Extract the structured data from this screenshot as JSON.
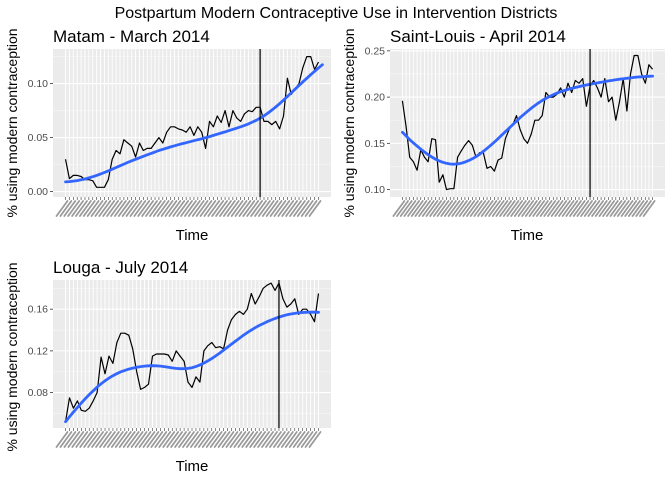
{
  "figure": {
    "title": "Postpartum Modern Contraceptive Use in Intervention Districts"
  },
  "style": {
    "panel_bg": "#ebebeb",
    "grid_major": "#ffffff",
    "raw_line": "#000000",
    "smooth_line": "#3366ff",
    "vline": "#000000"
  },
  "chart_data": [
    {
      "type": "line",
      "title": "Matam - March 2014",
      "xlabel": "Time",
      "ylabel": "% using modern contraception",
      "ylim": [
        -0.005,
        0.132
      ],
      "yticks": [
        0.0,
        0.05,
        0.1
      ],
      "ytick_labels": [
        "0.00",
        "0.05",
        "0.10"
      ],
      "intervention_index": 50,
      "series": [
        {
          "values": [
            0.03,
            0.012,
            0.015,
            0.015,
            0.014,
            0.011,
            0.011,
            0.01,
            0.004,
            0.004,
            0.004,
            0.011,
            0.03,
            0.038,
            0.035,
            0.048,
            0.045,
            0.042,
            0.032,
            0.045,
            0.038,
            0.04,
            0.04,
            0.045,
            0.05,
            0.045,
            0.055,
            0.06,
            0.06,
            0.058,
            0.057,
            0.055,
            0.06,
            0.052,
            0.06,
            0.055,
            0.04,
            0.065,
            0.06,
            0.07,
            0.064,
            0.075,
            0.06,
            0.075,
            0.068,
            0.065,
            0.072,
            0.075,
            0.074,
            0.078,
            0.078,
            0.065,
            0.065,
            0.062,
            0.065,
            0.058,
            0.07,
            0.105,
            0.09,
            0.095,
            0.1,
            0.115,
            0.125,
            0.125,
            0.113,
            0.12
          ]
        },
        {
          "values": [
            0.009,
            0.0093,
            0.0097,
            0.0102,
            0.0109,
            0.0117,
            0.0127,
            0.0138,
            0.015,
            0.0163,
            0.0177,
            0.0192,
            0.0207,
            0.0223,
            0.0239,
            0.0255,
            0.027,
            0.0285,
            0.0299,
            0.0313,
            0.0327,
            0.0341,
            0.0354,
            0.0367,
            0.038,
            0.0392,
            0.0403,
            0.0414,
            0.0424,
            0.0434,
            0.0444,
            0.0453,
            0.0462,
            0.0471,
            0.048,
            0.0489,
            0.0499,
            0.0509,
            0.052,
            0.0531,
            0.0542,
            0.0553,
            0.0565,
            0.0577,
            0.0588,
            0.06,
            0.0613,
            0.0627,
            0.0643,
            0.066,
            0.068,
            0.0702,
            0.0727,
            0.0754,
            0.0783,
            0.0814,
            0.0847,
            0.088,
            0.0914,
            0.0948,
            0.0982,
            0.1016,
            0.1049,
            0.1082,
            0.1114,
            0.1145,
            0.1175
          ]
        }
      ]
    },
    {
      "type": "line",
      "title": "Saint-Louis - April 2014",
      "xlabel": "Time",
      "ylabel": "% using modern contraception",
      "ylim": [
        0.092,
        0.252
      ],
      "yticks": [
        0.1,
        0.15,
        0.2,
        0.25
      ],
      "ytick_labels": [
        "0.10",
        "0.15",
        "0.20",
        "0.25"
      ],
      "intervention_index": 51,
      "series": [
        {
          "values": [
            0.196,
            0.168,
            0.135,
            0.13,
            0.121,
            0.143,
            0.135,
            0.13,
            0.155,
            0.154,
            0.108,
            0.116,
            0.1,
            0.101,
            0.101,
            0.135,
            0.142,
            0.148,
            0.153,
            0.148,
            0.135,
            0.14,
            0.14,
            0.123,
            0.125,
            0.12,
            0.132,
            0.134,
            0.155,
            0.165,
            0.17,
            0.18,
            0.165,
            0.155,
            0.15,
            0.16,
            0.175,
            0.175,
            0.18,
            0.205,
            0.2,
            0.2,
            0.203,
            0.21,
            0.2,
            0.215,
            0.205,
            0.218,
            0.215,
            0.22,
            0.19,
            0.212,
            0.218,
            0.21,
            0.2,
            0.22,
            0.195,
            0.2,
            0.175,
            0.195,
            0.22,
            0.185,
            0.225,
            0.245,
            0.245,
            0.225,
            0.215,
            0.235,
            0.23
          ]
        },
        {
          "values": [
            0.162,
            0.158,
            0.154,
            0.1505,
            0.147,
            0.1437,
            0.1407,
            0.1378,
            0.1352,
            0.1329,
            0.131,
            0.1295,
            0.1284,
            0.1277,
            0.1275,
            0.1278,
            0.1285,
            0.1297,
            0.1313,
            0.1333,
            0.1356,
            0.1383,
            0.1413,
            0.1445,
            0.1479,
            0.1514,
            0.1551,
            0.1589,
            0.1627,
            0.1665,
            0.1703,
            0.1741,
            0.1778,
            0.1813,
            0.1847,
            0.1879,
            0.1909,
            0.1937,
            0.1963,
            0.1986,
            0.2007,
            0.2026,
            0.2043,
            0.2058,
            0.2071,
            0.2083,
            0.2094,
            0.2104,
            0.2113,
            0.2122,
            0.2131,
            0.2139,
            0.2147,
            0.2154,
            0.2161,
            0.2168,
            0.2175,
            0.2181,
            0.2187,
            0.2193,
            0.2198,
            0.2203,
            0.2208,
            0.2213,
            0.2217,
            0.222,
            0.2223,
            0.2225,
            0.2227
          ]
        }
      ]
    },
    {
      "type": "line",
      "title": "Louga - July 2014",
      "xlabel": "Time",
      "ylabel": "% using modern contraception",
      "ylim": [
        0.046,
        0.188
      ],
      "yticks": [
        0.08,
        0.12,
        0.16
      ],
      "ytick_labels": [
        "0.08",
        "0.12",
        "0.16"
      ],
      "intervention_index": 54,
      "series": [
        {
          "values": [
            0.052,
            0.075,
            0.065,
            0.072,
            0.063,
            0.062,
            0.065,
            0.072,
            0.08,
            0.114,
            0.098,
            0.115,
            0.108,
            0.128,
            0.137,
            0.137,
            0.135,
            0.122,
            0.1,
            0.083,
            0.085,
            0.088,
            0.115,
            0.117,
            0.117,
            0.117,
            0.116,
            0.11,
            0.12,
            0.115,
            0.11,
            0.09,
            0.085,
            0.095,
            0.09,
            0.12,
            0.125,
            0.128,
            0.123,
            0.124,
            0.122,
            0.14,
            0.15,
            0.155,
            0.158,
            0.155,
            0.16,
            0.175,
            0.165,
            0.172,
            0.18,
            0.183,
            0.185,
            0.178,
            0.185,
            0.17,
            0.162,
            0.165,
            0.17,
            0.155,
            0.16,
            0.16,
            0.155,
            0.148,
            0.175
          ]
        },
        {
          "values": [
            0.052,
            0.0567,
            0.0613,
            0.0657,
            0.07,
            0.0741,
            0.078,
            0.0817,
            0.0852,
            0.0884,
            0.0913,
            0.0939,
            0.0962,
            0.0982,
            0.0999,
            0.1013,
            0.1025,
            0.1035,
            0.1043,
            0.1049,
            0.1054,
            0.1057,
            0.1058,
            0.1057,
            0.1054,
            0.1049,
            0.1043,
            0.1037,
            0.1032,
            0.1029,
            0.1029,
            0.1032,
            0.1039,
            0.105,
            0.1065,
            0.1083,
            0.1104,
            0.1127,
            0.1152,
            0.1179,
            0.1207,
            0.1236,
            0.1265,
            0.1294,
            0.1322,
            0.1349,
            0.1375,
            0.1399,
            0.1422,
            0.1443,
            0.1462,
            0.148,
            0.1496,
            0.1511,
            0.1524,
            0.1536,
            0.1546,
            0.1554,
            0.156,
            0.1565,
            0.1568,
            0.157,
            0.1571,
            0.1571,
            0.157
          ]
        }
      ]
    }
  ]
}
